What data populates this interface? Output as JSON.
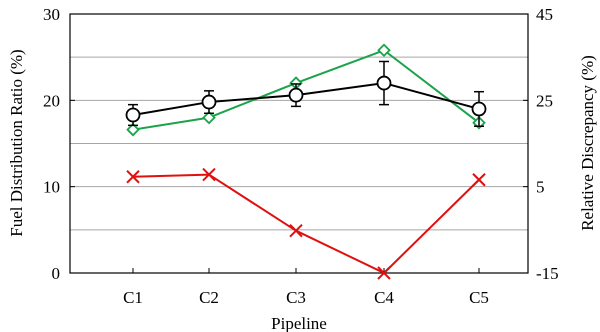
{
  "chart_data": {
    "type": "line",
    "categories": [
      "C1",
      "C2",
      "C3",
      "C4",
      "C5"
    ],
    "xlabel": "Pipeline",
    "ylabel": "Fuel Distribution Ratio (%)",
    "y2label": "Relative Discrepancy (%)",
    "ylim": [
      0,
      30
    ],
    "y2lim": [
      -15,
      45
    ],
    "yticks": [
      0,
      10,
      20,
      30
    ],
    "y2ticks": [
      -15,
      5,
      25,
      45
    ],
    "grid": true,
    "legend": "none",
    "series": [
      {
        "axis": "left",
        "marker": "circle",
        "color": "#000000",
        "values": [
          18.3,
          19.8,
          20.6,
          22.0,
          19.0
        ],
        "error": [
          1.2,
          1.3,
          1.3,
          2.5,
          2.0
        ]
      },
      {
        "axis": "left",
        "marker": "diamond",
        "color": "#1aa34a",
        "values": [
          16.6,
          18.0,
          22.0,
          25.8,
          17.4
        ]
      },
      {
        "axis": "right",
        "marker": "x",
        "color": "#e01010",
        "values": [
          7.3,
          7.8,
          -5.2,
          -15.0,
          6.6
        ]
      }
    ]
  }
}
